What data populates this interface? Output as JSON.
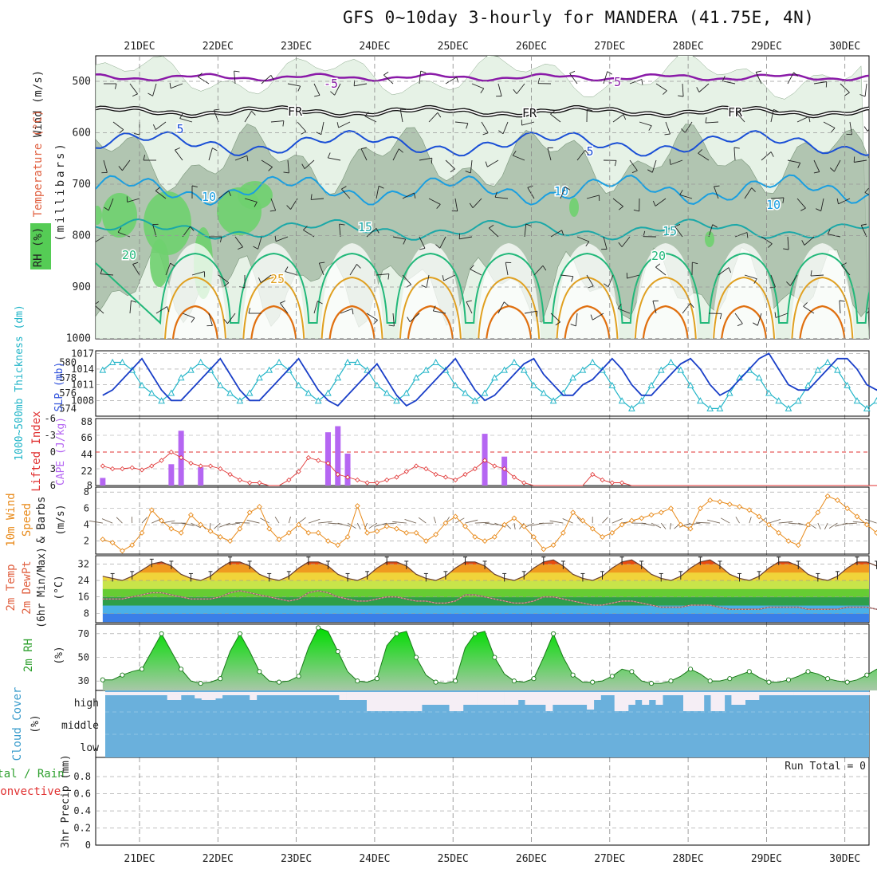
{
  "chart_data": {
    "type": "meteogram",
    "title": "GFS 0~10day 3-hourly for MANDERA (41.75E, 4N)",
    "dates": [
      "21DEC",
      "22DEC",
      "23DEC",
      "24DEC",
      "25DEC",
      "26DEC",
      "27DEC",
      "28DEC",
      "29DEC",
      "30DEC"
    ],
    "run_total": "Run Total = 0",
    "colors": {
      "rh_light": "#e6f2e6",
      "rh_mid": "#9fb59f",
      "rh_dark": "#6fd06f",
      "iso_m5": "#8a1aa8",
      "iso_fr": "#111111",
      "iso_5": "#1a4fd6",
      "iso_10": "#1a9fe0",
      "iso_15": "#1aa8a8",
      "iso_20": "#22b87a",
      "iso_25": "#e0a020",
      "iso_30": "#e07010",
      "thickness": "#22b5c8",
      "slp": "#1a3fc8",
      "cape": "#b566f2",
      "lifted": "#e03030",
      "wind": "#e88a1a",
      "rh2m": "#2ea02e",
      "cloud": "#6ab0dc"
    },
    "panels": {
      "upper_air": {
        "ylabel": "(millibars)",
        "side_labels": {
          "wind": "Wind (m/s)",
          "temp": "Temperature (°C)",
          "rh": "RH (%)"
        },
        "yticks": [
          "500",
          "600",
          "700",
          "800",
          "900",
          "1000"
        ],
        "isotherm_labels": [
          "-5",
          "-5",
          "FR",
          "FR",
          "FR",
          "5",
          "5",
          "10",
          "10",
          "10",
          "15",
          "15",
          "20",
          "20",
          "25"
        ]
      },
      "slp": {
        "left_label": "1000~500mb Thickness (dm)",
        "right_label": "SLP (mb)",
        "left_ticks": [
          "580",
          "578",
          "576",
          "574"
        ],
        "right_ticks": [
          "1017",
          "1014",
          "1011",
          "1008"
        ]
      },
      "cape": {
        "left_label": "Lifted Index",
        "right_label": "CAPE (J/kg)",
        "left_ticks": [
          "-6",
          "-3",
          "0",
          "3",
          "6"
        ],
        "right_ticks": [
          "88",
          "66",
          "44",
          "22",
          "8"
        ]
      },
      "wind10m": {
        "label1": "10m Wind",
        "label2": "Speed",
        "label3": "& Barbs",
        "unit": "(m/s)",
        "yticks": [
          "8",
          "6",
          "4",
          "2"
        ]
      },
      "temp2m": {
        "label1": "2m Temp",
        "label2": "2m DewPt",
        "label3": "(6hr Min/Max)",
        "unit": "(°C)",
        "yticks": [
          "32",
          "24",
          "16",
          "8"
        ]
      },
      "rh2m": {
        "label": "2m RH",
        "unit": "(%)",
        "yticks": [
          "70",
          "50",
          "30"
        ]
      },
      "cloud": {
        "label": "Cloud Cover",
        "unit": "(%)",
        "levels": [
          "high",
          "middle",
          "low"
        ]
      },
      "precip": {
        "label1": "Total / Rain",
        "label2": "Convective",
        "label3": "3hr Precip (mm)",
        "yticks": [
          "0.8",
          "0.6",
          "0.4",
          "0.2",
          "0"
        ]
      }
    },
    "series": {
      "slp": [
        1009,
        1010,
        1012,
        1014,
        1016,
        1013,
        1010,
        1008,
        1008,
        1010,
        1012,
        1014,
        1016,
        1013,
        1010,
        1008,
        1008,
        1010,
        1012,
        1014,
        1016,
        1013,
        1010,
        1008,
        1007,
        1009,
        1011,
        1013,
        1015,
        1012,
        1009,
        1007,
        1008,
        1010,
        1012,
        1014,
        1016,
        1013,
        1010,
        1008,
        1009,
        1011,
        1013,
        1015,
        1016,
        1013,
        1011,
        1009,
        1009,
        1011,
        1012,
        1014,
        1016,
        1014,
        1011,
        1009,
        1009,
        1011,
        1013,
        1015,
        1016,
        1014,
        1011,
        1009,
        1010,
        1012,
        1014,
        1016,
        1017,
        1014,
        1011,
        1010,
        1010,
        1012,
        1014,
        1016,
        1016,
        1014,
        1011,
        1010,
        1011,
        1013,
        1016
      ],
      "thickness": [
        579,
        580,
        580,
        579,
        577,
        576,
        575,
        576,
        578,
        579,
        580,
        579,
        577,
        576,
        575,
        576,
        578,
        579,
        580,
        579,
        577,
        576,
        575,
        576,
        578,
        580,
        580,
        579,
        577,
        576,
        575,
        576,
        578,
        579,
        580,
        579,
        577,
        576,
        575,
        576,
        578,
        579,
        580,
        579,
        577,
        576,
        575,
        576,
        578,
        579,
        580,
        579,
        577,
        575,
        574,
        575,
        577,
        579,
        580,
        579,
        577,
        575,
        574,
        574,
        576,
        578,
        579,
        578,
        576,
        575,
        574,
        575,
        577,
        579,
        580,
        579,
        577,
        575,
        574,
        575,
        577,
        578,
        576
      ],
      "cape": [
        {
          "i": 0,
          "v": 10
        },
        {
          "i": 7,
          "v": 28
        },
        {
          "i": 8,
          "v": 72
        },
        {
          "i": 10,
          "v": 24
        },
        {
          "i": 23,
          "v": 70
        },
        {
          "i": 24,
          "v": 78
        },
        {
          "i": 25,
          "v": 42
        },
        {
          "i": 39,
          "v": 68
        },
        {
          "i": 41,
          "v": 38
        }
      ],
      "lifted": [
        2.5,
        3,
        3,
        2.8,
        3.2,
        2.5,
        1.5,
        0,
        1,
        2,
        2.5,
        2.5,
        3,
        4,
        5,
        5.5,
        5.5,
        6,
        6,
        5,
        3.5,
        1,
        1.5,
        2,
        4,
        4.5,
        5,
        5.5,
        5.5,
        5,
        4.5,
        3.5,
        2.5,
        3,
        4,
        4.5,
        5,
        4,
        3,
        1.5,
        2.5,
        3,
        4.5,
        5.5,
        6,
        6,
        6,
        6,
        6,
        6,
        4,
        5,
        5.5,
        5.5,
        6,
        6,
        6,
        6,
        6,
        6,
        6,
        6,
        6,
        6,
        6,
        6,
        6,
        6,
        6,
        6,
        6,
        6,
        6,
        6,
        6,
        6,
        6,
        6,
        6,
        6,
        6,
        6,
        6
      ],
      "wind10m": [
        2.2,
        1.8,
        0.8,
        1.5,
        3,
        5.8,
        4.5,
        3.5,
        3,
        5.2,
        4,
        3.2,
        2.5,
        2,
        3.5,
        5.5,
        6.2,
        3.5,
        2.2,
        3,
        4,
        3,
        3,
        2,
        1.5,
        2.5,
        6.3,
        3,
        3.2,
        3.8,
        3.5,
        3,
        3,
        2,
        2.8,
        4.2,
        5,
        3.8,
        2.5,
        2,
        2.5,
        4,
        4.8,
        3.8,
        2.5,
        1,
        1.5,
        3,
        5.5,
        4.5,
        3.5,
        2.5,
        3,
        4,
        4.5,
        4.8,
        5.2,
        5.5,
        6,
        4,
        3.5,
        6,
        7,
        6.8,
        6.5,
        6.2,
        5.8,
        5,
        4,
        3,
        2,
        1.5,
        4,
        5.5,
        7.5,
        7,
        6,
        5,
        4,
        3,
        2,
        4,
        6
      ],
      "temp2m": [
        26,
        25,
        24,
        26,
        29,
        32,
        33,
        31,
        27,
        25,
        24,
        26,
        30,
        33,
        33,
        31,
        27,
        25,
        24,
        26,
        30,
        33,
        33,
        31,
        27,
        25,
        24,
        26,
        30,
        33,
        33,
        31,
        27,
        25,
        24,
        26,
        30,
        33,
        33,
        31,
        27,
        25,
        24,
        26,
        30,
        33,
        34,
        31,
        27,
        25,
        24,
        26,
        30,
        33,
        34,
        31,
        27,
        25,
        24,
        26,
        30,
        33,
        34,
        31,
        27,
        25,
        24,
        26,
        30,
        33,
        33,
        31,
        27,
        25,
        24,
        26,
        30,
        33,
        33,
        31,
        26,
        23,
        28
      ],
      "dewpt": [
        15,
        15,
        15,
        16,
        17,
        18,
        18,
        17,
        16,
        15,
        15,
        15,
        16,
        18,
        19,
        18,
        17,
        16,
        15,
        14,
        15,
        18,
        19,
        18,
        16,
        15,
        14,
        14,
        15,
        16,
        16,
        15,
        14,
        14,
        13,
        13,
        14,
        17,
        17,
        16,
        15,
        14,
        13,
        13,
        14,
        16,
        16,
        15,
        14,
        13,
        12,
        12,
        13,
        14,
        14,
        13,
        12,
        11,
        11,
        11,
        12,
        12,
        12,
        11,
        10,
        10,
        10,
        10,
        11,
        11,
        11,
        11,
        10,
        10,
        10,
        10,
        11,
        11,
        11,
        10,
        10,
        11,
        14
      ],
      "rh2m": [
        31,
        31,
        35,
        38,
        40,
        55,
        70,
        55,
        40,
        30,
        28,
        29,
        32,
        55,
        70,
        55,
        38,
        30,
        29,
        30,
        34,
        58,
        75,
        72,
        55,
        38,
        30,
        29,
        32,
        60,
        70,
        72,
        50,
        35,
        29,
        28,
        30,
        58,
        70,
        72,
        50,
        36,
        30,
        29,
        32,
        50,
        70,
        50,
        35,
        29,
        29,
        30,
        34,
        40,
        38,
        30,
        28,
        28,
        30,
        34,
        40,
        36,
        30,
        30,
        32,
        35,
        38,
        33,
        29,
        29,
        31,
        34,
        38,
        36,
        32,
        30,
        29,
        31,
        35,
        40,
        36,
        31,
        31
      ]
    },
    "cloud_high": [
      22,
      22,
      22,
      22,
      22,
      22,
      22,
      22,
      22,
      16,
      16,
      22,
      22,
      18,
      16,
      16,
      18,
      22,
      22,
      22,
      22,
      16,
      22,
      22,
      22,
      22,
      22,
      22,
      22,
      22,
      22,
      22,
      22,
      22,
      16,
      16,
      16,
      16,
      2,
      2,
      2,
      2,
      2,
      2,
      2,
      2,
      10,
      10,
      10,
      10,
      2,
      2,
      10,
      10,
      10,
      10,
      10,
      10,
      10,
      10,
      16,
      10,
      10,
      10,
      2,
      10,
      10,
      10,
      10,
      10,
      4,
      16,
      22,
      22,
      2,
      2,
      10,
      16,
      10,
      16,
      10,
      22,
      22,
      22,
      2,
      2,
      2,
      22,
      2,
      2,
      22,
      10,
      10,
      16,
      16,
      22,
      22,
      22,
      22,
      22,
      22,
      22,
      22,
      22,
      22,
      22,
      22,
      22,
      22,
      22,
      22
    ]
  }
}
